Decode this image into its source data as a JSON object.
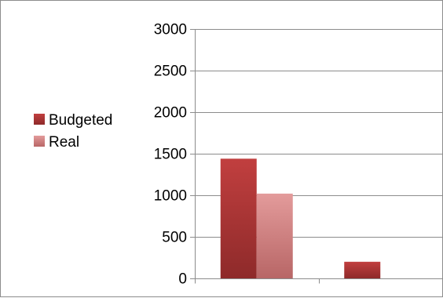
{
  "chart_data": {
    "type": "bar",
    "title": "",
    "xlabel": "",
    "ylabel": "",
    "categories": [
      "",
      ""
    ],
    "ylim": [
      0,
      3000
    ],
    "yticks": [
      0,
      500,
      1000,
      1500,
      2000,
      2500,
      3000
    ],
    "grid": true,
    "legend_position": "left",
    "series": [
      {
        "name": "Budgeted",
        "values": [
          1440,
          200
        ],
        "color": "#b53a3a"
      },
      {
        "name": "Real",
        "values": [
          1020,
          0
        ],
        "color": "#d88a8a"
      }
    ]
  }
}
